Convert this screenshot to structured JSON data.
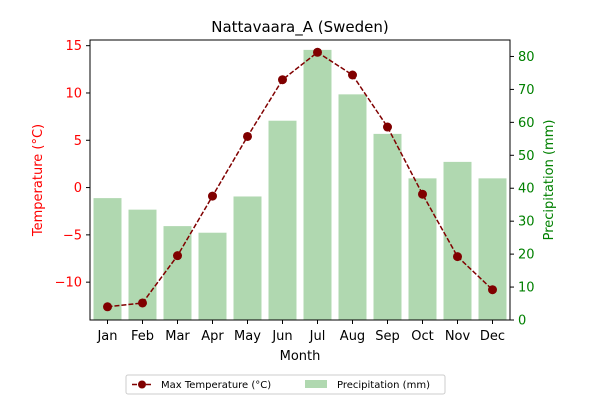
{
  "chart_data": {
    "type": "bar",
    "title": "Nattavaara_A (Sweden)",
    "xlabel": "Month",
    "categories": [
      "Jan",
      "Feb",
      "Mar",
      "Apr",
      "May",
      "Jun",
      "Jul",
      "Aug",
      "Sep",
      "Oct",
      "Nov",
      "Dec"
    ],
    "temperature": {
      "name": "Max Temperature (°C)",
      "ylabel": "Temperature (°C)",
      "values": [
        -12.6,
        -12.2,
        -7.2,
        -0.9,
        5.4,
        11.4,
        14.3,
        11.9,
        6.4,
        -0.7,
        -7.3,
        -10.8
      ],
      "ylim": [
        -14,
        15.6
      ],
      "ticks": [
        -10,
        -5,
        0,
        5,
        10,
        15
      ],
      "color": "#800000",
      "axis_color": "#ff0000"
    },
    "precipitation": {
      "name": "Precipitation (mm)",
      "ylabel": "Precipitation (mm)",
      "values": [
        37,
        33.5,
        28.5,
        26.5,
        37.5,
        60.5,
        82,
        68.5,
        56.5,
        43,
        48,
        43
      ],
      "ylim": [
        0,
        85
      ],
      "ticks": [
        0,
        10,
        20,
        30,
        40,
        50,
        60,
        70,
        80
      ],
      "color": "#b0d8b0",
      "axis_color": "#008000"
    },
    "legend_position": "bottom-center"
  }
}
